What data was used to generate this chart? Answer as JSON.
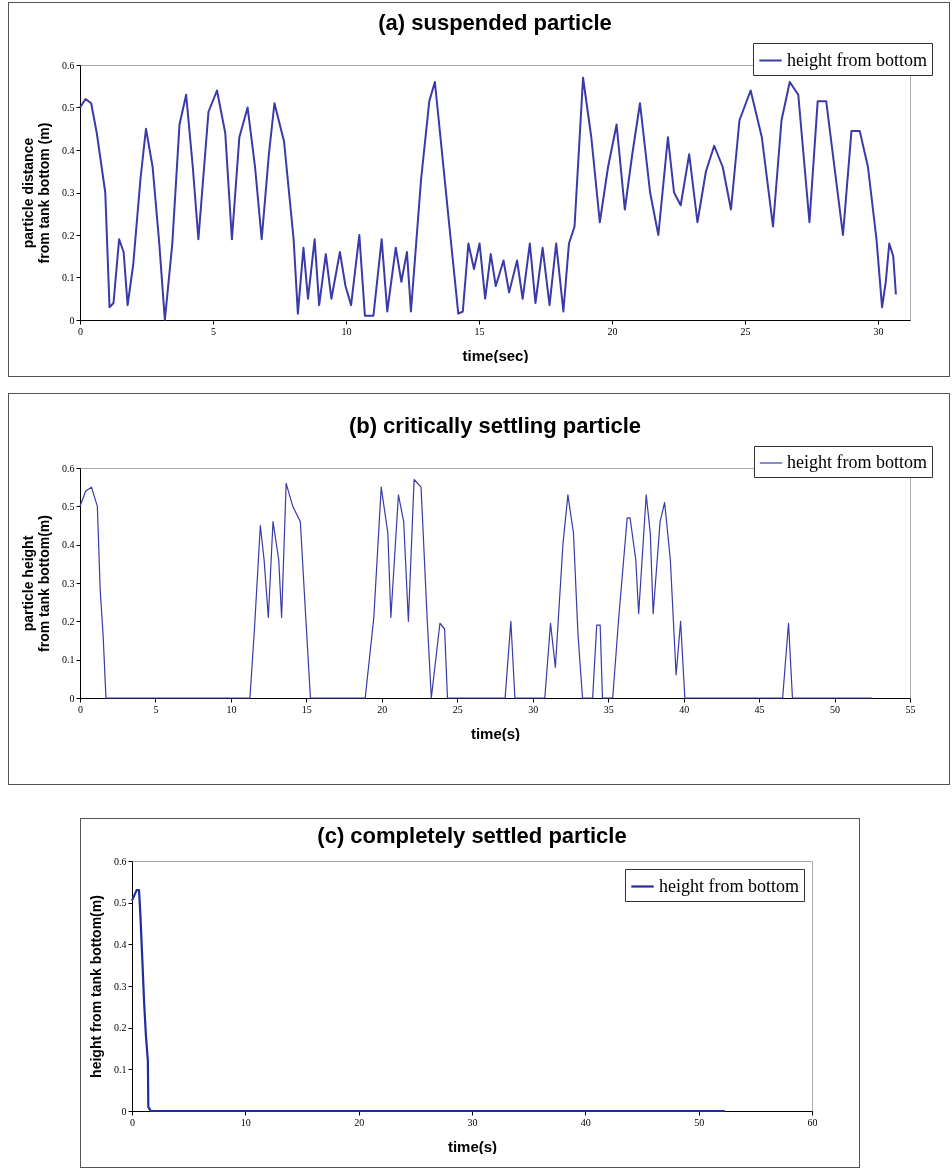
{
  "chart_data": [
    {
      "type": "line",
      "title": "(a)  suspended particle",
      "xlabel": "time(sec)",
      "ylabel": "particle distance from tank bottom (m)",
      "legend": "top right",
      "xlim": [
        0,
        31.2
      ],
      "xticks": [
        0,
        5,
        10,
        15,
        20,
        25,
        30
      ],
      "ylim": [
        0,
        0.6
      ],
      "yticks": [
        0,
        0.1,
        0.2,
        0.3,
        0.4,
        0.5,
        0.6
      ],
      "x": [
        0,
        0.21,
        0.42,
        0.63,
        0.95,
        1.11,
        1.26,
        1.47,
        1.64,
        1.79,
        2.0,
        2.27,
        2.48,
        2.73,
        2.98,
        3.19,
        3.47,
        3.74,
        3.99,
        4.24,
        4.45,
        4.83,
        5.15,
        5.46,
        5.71,
        5.99,
        6.3,
        6.58,
        6.83,
        7.1,
        7.31,
        7.67,
        8.03,
        8.19,
        8.4,
        8.57,
        8.82,
        8.99,
        9.24,
        9.45,
        9.77,
        9.98,
        10.19,
        10.5,
        10.71,
        11.03,
        11.34,
        11.55,
        11.87,
        12.08,
        12.29,
        12.44,
        12.82,
        13.13,
        13.34,
        13.55,
        13.87,
        14.22,
        14.39,
        14.6,
        14.81,
        15.02,
        15.23,
        15.44,
        15.63,
        15.92,
        16.13,
        16.43,
        16.64,
        16.91,
        17.12,
        17.39,
        17.65,
        17.9,
        18.17,
        18.38,
        18.59,
        18.91,
        19.22,
        19.54,
        19.85,
        20.17,
        20.48,
        20.76,
        21.05,
        21.43,
        21.74,
        22.1,
        22.33,
        22.58,
        22.9,
        23.21,
        23.53,
        23.84,
        24.16,
        24.47,
        24.79,
        25.21,
        25.63,
        26.05,
        26.37,
        26.68,
        27.0,
        27.42,
        27.73,
        28.05,
        28.36,
        28.68,
        29.0,
        29.31,
        29.62,
        29.94,
        30.15,
        30.29,
        30.42,
        30.57,
        30.67
      ],
      "series": [
        {
          "name": "height from bottom",
          "color": "#3a3aa8",
          "values": [
            0.5,
            0.52,
            0.51,
            0.44,
            0.3,
            0.03,
            0.04,
            0.19,
            0.16,
            0.035,
            0.13,
            0.33,
            0.45,
            0.36,
            0.18,
            0.0,
            0.18,
            0.46,
            0.53,
            0.36,
            0.19,
            0.49,
            0.54,
            0.44,
            0.19,
            0.43,
            0.5,
            0.36,
            0.19,
            0.39,
            0.51,
            0.42,
            0.19,
            0.015,
            0.17,
            0.05,
            0.19,
            0.035,
            0.155,
            0.05,
            0.16,
            0.08,
            0.035,
            0.2,
            0.01,
            0.01,
            0.19,
            0.02,
            0.17,
            0.09,
            0.16,
            0.02,
            0.33,
            0.515,
            0.56,
            0.43,
            0.23,
            0.015,
            0.02,
            0.18,
            0.12,
            0.18,
            0.05,
            0.155,
            0.08,
            0.14,
            0.065,
            0.14,
            0.05,
            0.18,
            0.04,
            0.17,
            0.035,
            0.18,
            0.02,
            0.18,
            0.22,
            0.57,
            0.43,
            0.23,
            0.36,
            0.46,
            0.26,
            0.39,
            0.51,
            0.3,
            0.2,
            0.43,
            0.3,
            0.27,
            0.39,
            0.23,
            0.35,
            0.41,
            0.36,
            0.26,
            0.47,
            0.54,
            0.43,
            0.22,
            0.47,
            0.56,
            0.53,
            0.23,
            0.515,
            0.515,
            0.36,
            0.2,
            0.445,
            0.445,
            0.36,
            0.19,
            0.03,
            0.09,
            0.18,
            0.15,
            0.06
          ]
        }
      ]
    },
    {
      "type": "line",
      "title": "(b) critically settling particle",
      "xlabel": "time(s)",
      "ylabel": "particle height from tank bottom(m)",
      "legend": "top right",
      "xlim": [
        0,
        55
      ],
      "xticks": [
        0,
        5,
        10,
        15,
        20,
        25,
        30,
        35,
        40,
        45,
        50,
        55
      ],
      "ylim": [
        0,
        0.6
      ],
      "yticks": [
        0,
        0.1,
        0.2,
        0.3,
        0.4,
        0.5,
        0.6
      ],
      "x": [
        0,
        0.38,
        0.76,
        1.15,
        1.34,
        1.53,
        1.72,
        11.26,
        11.56,
        11.95,
        12.2,
        12.48,
        12.79,
        13.17,
        13.36,
        13.66,
        14.1,
        14.6,
        14.96,
        15.27,
        18.9,
        19.47,
        19.96,
        20.4,
        20.6,
        21.1,
        21.45,
        21.76,
        22.14,
        22.6,
        23.0,
        23.28,
        23.85,
        24.16,
        24.35,
        28.17,
        28.55,
        28.82,
        30.8,
        31.18,
        31.5,
        32.0,
        32.33,
        32.7,
        33.0,
        33.3,
        33.97,
        34.24,
        34.47,
        34.62,
        35.3,
        35.7,
        36.26,
        36.45,
        36.83,
        37.02,
        37.52,
        37.79,
        37.98,
        38.44,
        38.74,
        39.12,
        39.5,
        39.8,
        40.08,
        46.56,
        46.95,
        47.21,
        52.5
      ],
      "series": [
        {
          "name": "height from bottom",
          "color": "#3a3aa8",
          "values": [
            0.5,
            0.54,
            0.55,
            0.5,
            0.28,
            0.165,
            0,
            0,
            0.18,
            0.45,
            0.36,
            0.21,
            0.46,
            0.36,
            0.21,
            0.56,
            0.5,
            0.46,
            0.21,
            0,
            0,
            0.21,
            0.55,
            0.43,
            0.21,
            0.53,
            0.46,
            0.2,
            0.57,
            0.55,
            0.21,
            0,
            0.195,
            0.18,
            0,
            0,
            0.2,
            0,
            0,
            0.195,
            0.08,
            0.4,
            0.53,
            0.43,
            0.165,
            0,
            0,
            0.19,
            0.19,
            0,
            0,
            0.21,
            0.47,
            0.47,
            0.36,
            0.22,
            0.53,
            0.43,
            0.22,
            0.46,
            0.51,
            0.36,
            0.06,
            0.2,
            0,
            0,
            0.195,
            0,
            0
          ]
        }
      ]
    },
    {
      "type": "line",
      "title": "(c) completely settled particle",
      "xlabel": "time(s)",
      "ylabel": "height from tank bottom(m)",
      "legend": "top right",
      "xlim": [
        0,
        60
      ],
      "xticks": [
        0,
        10,
        20,
        30,
        40,
        50,
        60
      ],
      "ylim": [
        0,
        0.6
      ],
      "yticks": [
        0,
        0.1,
        0.2,
        0.3,
        0.4,
        0.5,
        0.6
      ],
      "x": [
        0,
        0.41,
        0.62,
        0.74,
        0.9,
        1.07,
        1.23,
        1.4,
        1.44,
        1.65,
        52.3
      ],
      "series": [
        {
          "name": "height from bottom",
          "color": "#1f2e9e",
          "values": [
            0.505,
            0.53,
            0.53,
            0.47,
            0.37,
            0.26,
            0.18,
            0.12,
            0.01,
            0,
            0
          ]
        }
      ]
    }
  ]
}
